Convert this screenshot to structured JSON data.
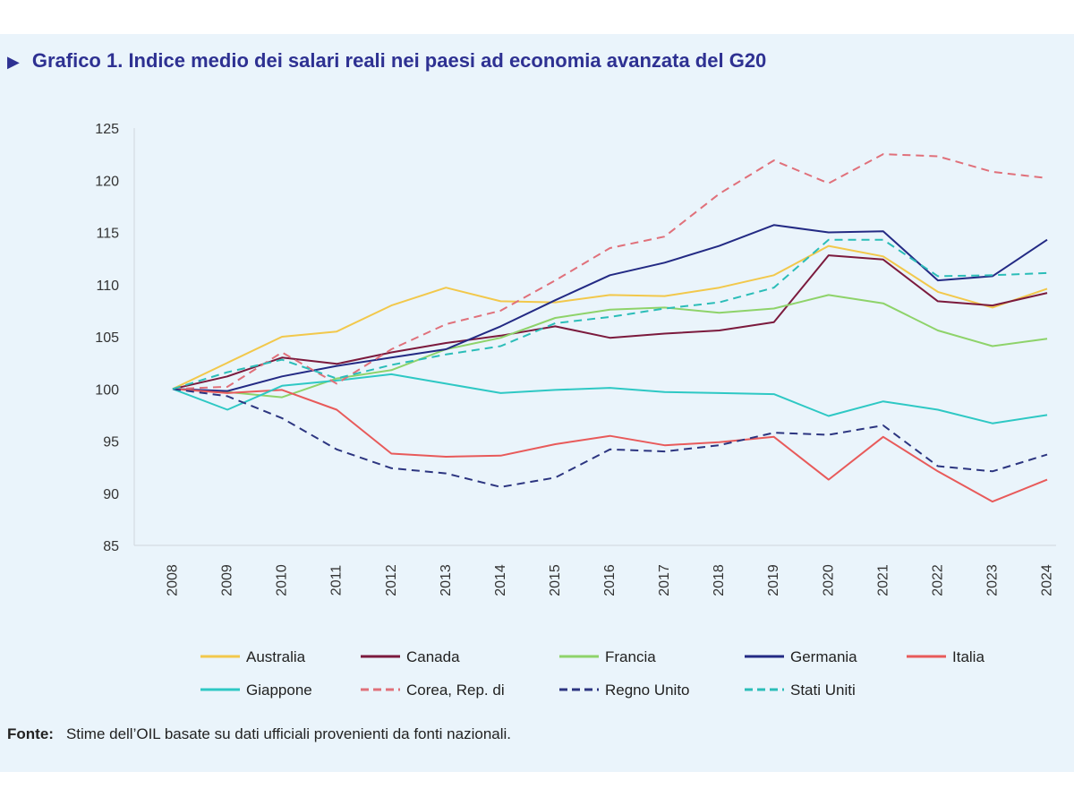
{
  "title": {
    "marker": "▶",
    "text": "Grafico 1. Indice medio dei salari reali nei paesi ad economia avanzata del G20"
  },
  "source": {
    "label": "Fonte:",
    "text": "Stime dell’OIL basate su dati ufficiali provenienti da fonti nazionali."
  },
  "chart_data": {
    "type": "line",
    "title": "Grafico 1. Indice medio dei salari reali nei paesi ad economia avanzata del G20",
    "xlabel": "",
    "ylabel": "",
    "x": [
      "2008",
      "2009",
      "2010",
      "2011",
      "2012",
      "2013",
      "2014",
      "2015",
      "2016",
      "2017",
      "2018",
      "2019",
      "2020",
      "2021",
      "2022",
      "2023",
      "2024"
    ],
    "ylim": [
      85,
      125
    ],
    "yticks": [
      "125",
      "120",
      "115",
      "110",
      "105",
      "100",
      "95",
      "90",
      "85"
    ],
    "legend_position": "bottom",
    "series": [
      {
        "name": "Australia",
        "color": "#f2c84b",
        "dash": false,
        "values": [
          100,
          102.5,
          105,
          105.5,
          108,
          109.7,
          108.4,
          108.3,
          109,
          108.9,
          109.7,
          110.9,
          113.7,
          112.7,
          109.3,
          107.8,
          109.6
        ]
      },
      {
        "name": "Canada",
        "color": "#7b1a3d",
        "dash": false,
        "values": [
          100,
          101.2,
          103,
          102.4,
          103.5,
          104.4,
          105.1,
          106,
          104.9,
          105.3,
          105.6,
          106.4,
          112.8,
          112.4,
          108.4,
          108,
          109.2
        ]
      },
      {
        "name": "Francia",
        "color": "#8ed36a",
        "dash": false,
        "values": [
          100,
          99.7,
          99.2,
          101,
          101.8,
          103.8,
          104.9,
          106.8,
          107.6,
          107.8,
          107.3,
          107.7,
          109,
          108.2,
          105.6,
          104.1,
          104.8
        ]
      },
      {
        "name": "Germania",
        "color": "#232a84",
        "dash": false,
        "values": [
          100,
          99.8,
          101.2,
          102.2,
          103,
          103.8,
          106,
          108.5,
          110.9,
          112.1,
          113.7,
          115.7,
          115,
          115.1,
          110.4,
          110.8,
          114.3
        ]
      },
      {
        "name": "Italia",
        "color": "#e85a5a",
        "dash": false,
        "values": [
          100,
          99.6,
          99.9,
          98,
          93.8,
          93.5,
          93.6,
          94.7,
          95.5,
          94.6,
          94.9,
          95.4,
          91.3,
          95.4,
          92.1,
          89.2,
          91.3
        ]
      },
      {
        "name": "Giappone",
        "color": "#2ec8c4",
        "dash": false,
        "values": [
          100,
          98,
          100.3,
          100.8,
          101.4,
          100.5,
          99.6,
          99.9,
          100.1,
          99.7,
          99.6,
          99.5,
          97.4,
          98.8,
          98,
          96.7,
          97.5
        ]
      },
      {
        "name": "Corea, Rep. di",
        "color": "#e0707a",
        "dash": true,
        "values": [
          100,
          100.2,
          103.5,
          100.5,
          103.8,
          106.2,
          107.5,
          110.4,
          113.5,
          114.6,
          118.7,
          121.9,
          119.7,
          122.5,
          122.3,
          120.8,
          120.2
        ]
      },
      {
        "name": "Regno Unito",
        "color": "#2c3580",
        "dash": true,
        "values": [
          100,
          99.3,
          97.2,
          94.2,
          92.4,
          91.9,
          90.6,
          91.5,
          94.2,
          94,
          94.6,
          95.8,
          95.6,
          96.5,
          92.6,
          92.1,
          93.7
        ]
      },
      {
        "name": "Stati Uniti",
        "color": "#2bbdb8",
        "dash": true,
        "values": [
          100,
          101.6,
          102.8,
          101,
          102.3,
          103.3,
          104.1,
          106.3,
          106.9,
          107.7,
          108.3,
          109.7,
          114.3,
          114.3,
          110.8,
          110.9,
          111.1
        ]
      }
    ]
  }
}
